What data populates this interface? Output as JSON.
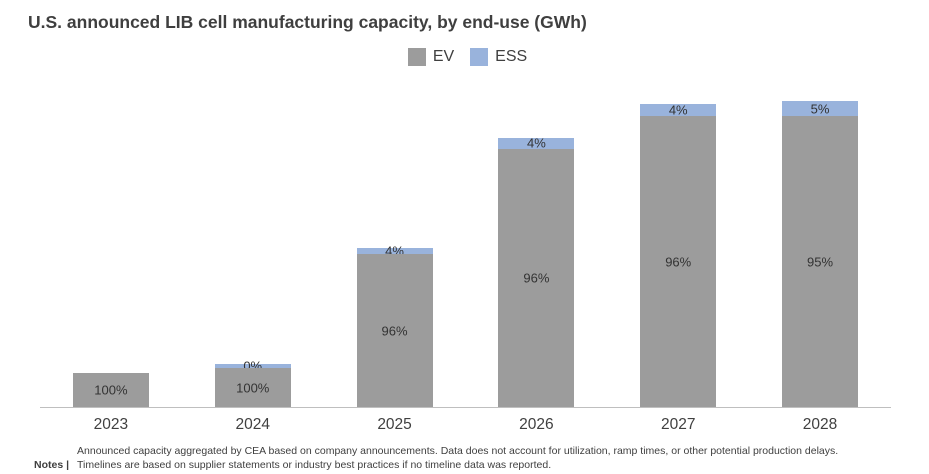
{
  "chart_data": {
    "type": "bar",
    "stacked": true,
    "title": "U.S. announced LIB cell manufacturing capacity, by end-use (GWh)",
    "categories": [
      "2023",
      "2024",
      "2025",
      "2026",
      "2027",
      "2028"
    ],
    "legend": [
      "EV",
      "ESS"
    ],
    "legend_position": "top-center",
    "axis_note": "no y-axis shown; bar totals estimated relative to 2028 = 100",
    "total_height_rel": [
      11,
      14,
      52,
      88,
      99,
      100
    ],
    "series": [
      {
        "name": "EV",
        "color": "#9c9c9c",
        "values_pct": [
          100,
          100,
          96,
          96,
          96,
          95
        ],
        "labels": [
          "100%",
          "100%",
          "96%",
          "96%",
          "96%",
          "95%"
        ]
      },
      {
        "name": "ESS",
        "color": "#99b3dc",
        "values_pct": [
          0,
          0,
          4,
          4,
          4,
          5
        ],
        "labels": [
          "",
          "0%",
          "4%",
          "4%",
          "4%",
          "5%"
        ]
      }
    ],
    "xlabel": "",
    "ylabel": "",
    "grid": false
  },
  "colors": {
    "ev": "#9c9c9c",
    "ess": "#99b3dc",
    "axis": "#bfbfbf",
    "title_text": "#3f3f3f",
    "label_text": "#333333"
  },
  "notes": {
    "label": "Notes |",
    "lines": [
      "Announced capacity aggregated by CEA based on company announcements. Data does not account for utilization, ramp times, or other potential production delays.",
      "Timelines are based on supplier statements or industry best practices if no timeline data was reported."
    ]
  }
}
